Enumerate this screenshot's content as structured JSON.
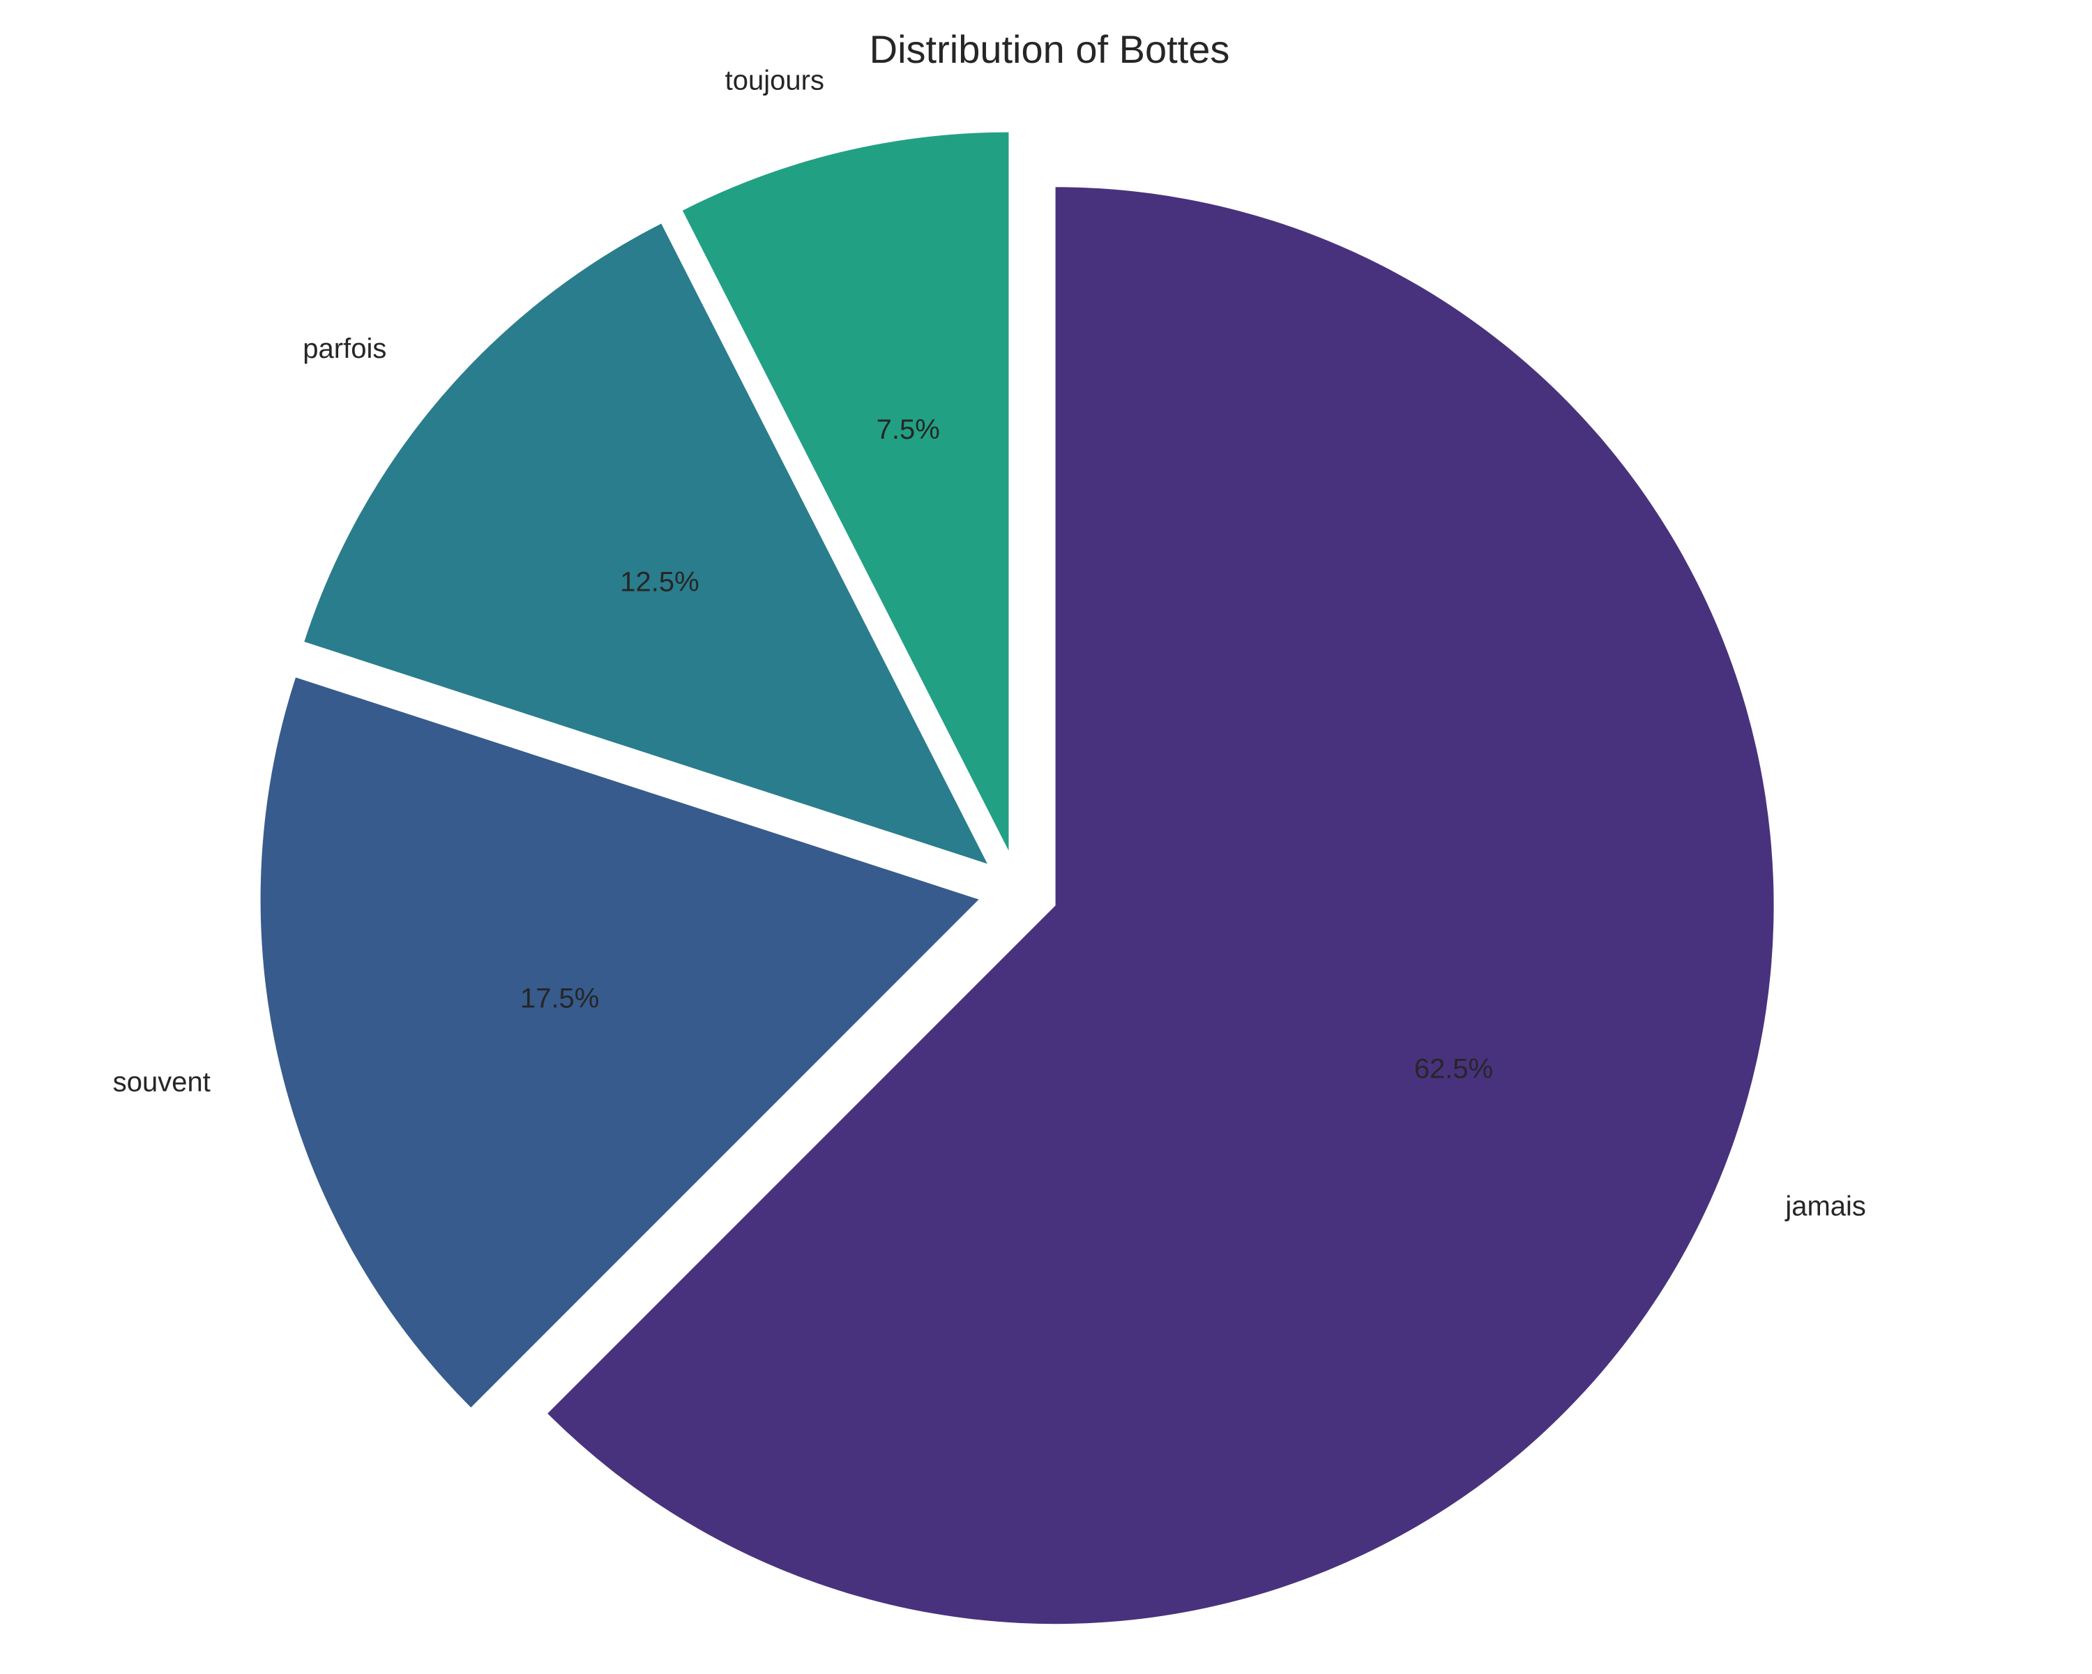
{
  "chart_data": {
    "type": "pie",
    "title": "Distribution of Bottes",
    "categories": [
      "jamais",
      "souvent",
      "parfois",
      "toujours"
    ],
    "values": [
      62.5,
      17.5,
      12.5,
      7.5
    ],
    "value_labels": [
      "62.5%",
      "17.5%",
      "12.5%",
      "7.5%"
    ],
    "colors": [
      "#48327d",
      "#375b8c",
      "#2a7d8c",
      "#22a084"
    ],
    "start_angle_deg": 90,
    "direction": "clockwise",
    "exploded": true
  }
}
